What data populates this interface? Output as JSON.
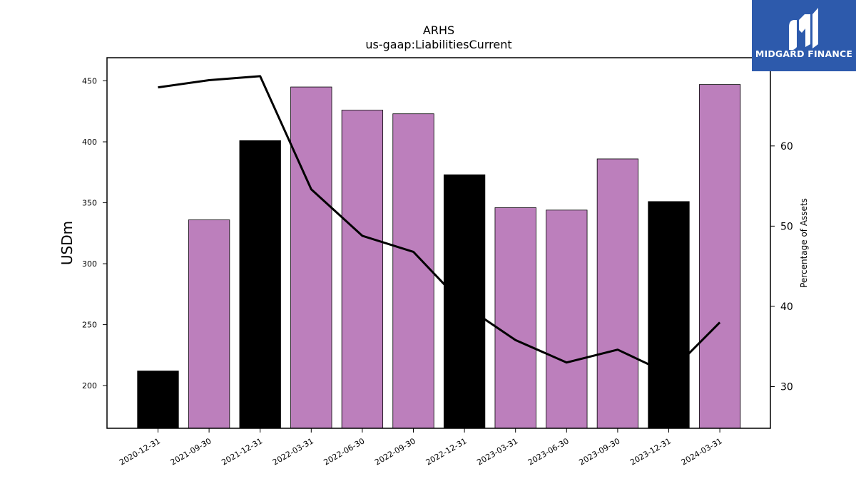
{
  "chart_data": {
    "type": "bar",
    "title": "ARHS",
    "subtitle": "us-gaap:LiabilitiesCurrent",
    "ylabel": "USDm",
    "y2label": "Percentage of Assets",
    "categories": [
      "2020-12-31",
      "2021-09-30",
      "2021-12-31",
      "2022-03-31",
      "2022-06-30",
      "2022-09-30",
      "2022-12-31",
      "2023-03-31",
      "2023-06-30",
      "2023-09-30",
      "2023-12-31",
      "2024-03-31"
    ],
    "values": [
      212,
      336,
      401,
      445,
      426,
      423,
      373,
      346,
      344,
      386,
      351,
      447
    ],
    "bar_colors": [
      "#000000",
      "#bc7fbc",
      "#000000",
      "#bc7fbc",
      "#bc7fbc",
      "#bc7fbc",
      "#000000",
      "#bc7fbc",
      "#bc7fbc",
      "#bc7fbc",
      "#000000",
      "#bc7fbc"
    ],
    "line_values": [
      67.3,
      68.2,
      68.7,
      54.6,
      48.8,
      46.8,
      40.1,
      35.8,
      33.0,
      34.6,
      31.6,
      38.0
    ],
    "ylim": [
      165,
      469
    ],
    "y2lim": [
      24.8,
      71.0
    ],
    "yticks": [
      200,
      250,
      300,
      350,
      400,
      450
    ],
    "y2ticks": [
      30,
      40,
      50,
      60
    ],
    "colors": {
      "bar_primary": "#bc7fbc",
      "bar_highlight": "#000000",
      "line": "#000000"
    }
  },
  "logo": {
    "text": "MIDGARD FINANCE",
    "background": "#2d5aac"
  }
}
